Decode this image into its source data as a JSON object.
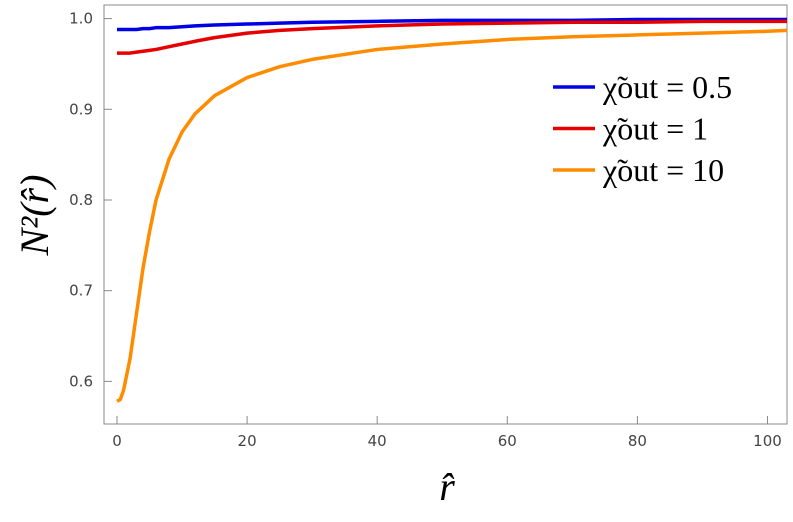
{
  "chart_data": {
    "type": "line",
    "xlabel": "r̂",
    "ylabel": "N²(r̂)",
    "x": [
      0,
      0.5,
      1,
      2,
      3,
      4,
      5,
      6,
      8,
      10,
      12,
      15,
      20,
      25,
      30,
      40,
      50,
      60,
      70,
      80,
      90,
      100,
      103
    ],
    "series": [
      {
        "name": "χ̃out = 0.5",
        "color": "#0000e6",
        "values": [
          0.988,
          0.988,
          0.988,
          0.988,
          0.988,
          0.989,
          0.989,
          0.99,
          0.99,
          0.991,
          0.992,
          0.993,
          0.994,
          0.995,
          0.996,
          0.997,
          0.998,
          0.998,
          0.998,
          0.999,
          0.999,
          0.999,
          0.999
        ]
      },
      {
        "name": "χ̃out = 1",
        "color": "#e60000",
        "values": [
          0.962,
          0.962,
          0.962,
          0.962,
          0.963,
          0.964,
          0.965,
          0.966,
          0.969,
          0.972,
          0.975,
          0.979,
          0.984,
          0.987,
          0.989,
          0.992,
          0.994,
          0.995,
          0.996,
          0.996,
          0.997,
          0.997,
          0.997
        ]
      },
      {
        "name": "χ̃out = 10",
        "color": "#ff8c00",
        "values": [
          0.578,
          0.58,
          0.59,
          0.625,
          0.675,
          0.725,
          0.765,
          0.8,
          0.845,
          0.875,
          0.895,
          0.915,
          0.935,
          0.947,
          0.955,
          0.966,
          0.972,
          0.977,
          0.98,
          0.982,
          0.984,
          0.986,
          0.987
        ]
      }
    ],
    "xlim": [
      -2,
      103
    ],
    "ylim": [
      0.553,
      1.015
    ],
    "xticks": [
      0,
      20,
      40,
      60,
      80,
      100
    ],
    "yticks": [
      0.6,
      0.7,
      0.8,
      0.9,
      {
        "value": 1,
        "label": "1.0"
      }
    ],
    "legend": "upper right"
  }
}
